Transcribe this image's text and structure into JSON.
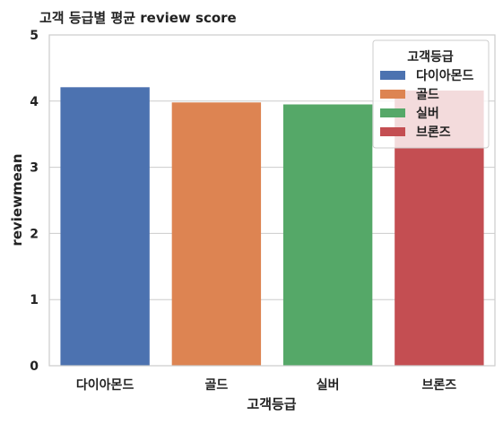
{
  "chart_data": {
    "type": "bar",
    "title": "고객 등급별 평균 review score",
    "xlabel": "고객등급",
    "ylabel": "reviewmean",
    "categories": [
      "다이아몬드",
      "골드",
      "실버",
      "브론즈"
    ],
    "values": [
      4.21,
      3.98,
      3.95,
      4.16
    ],
    "colors": [
      "#4c72b0",
      "#dd8452",
      "#55a868",
      "#c44e52"
    ],
    "ylim": [
      0,
      5
    ],
    "yticks": [
      "0",
      "1",
      "2",
      "3",
      "4",
      "5"
    ],
    "grid": true,
    "legend": {
      "title": "고객등급",
      "placement": "top-right",
      "entries": [
        "다이아몬드",
        "골드",
        "실버",
        "브론즈"
      ]
    }
  }
}
